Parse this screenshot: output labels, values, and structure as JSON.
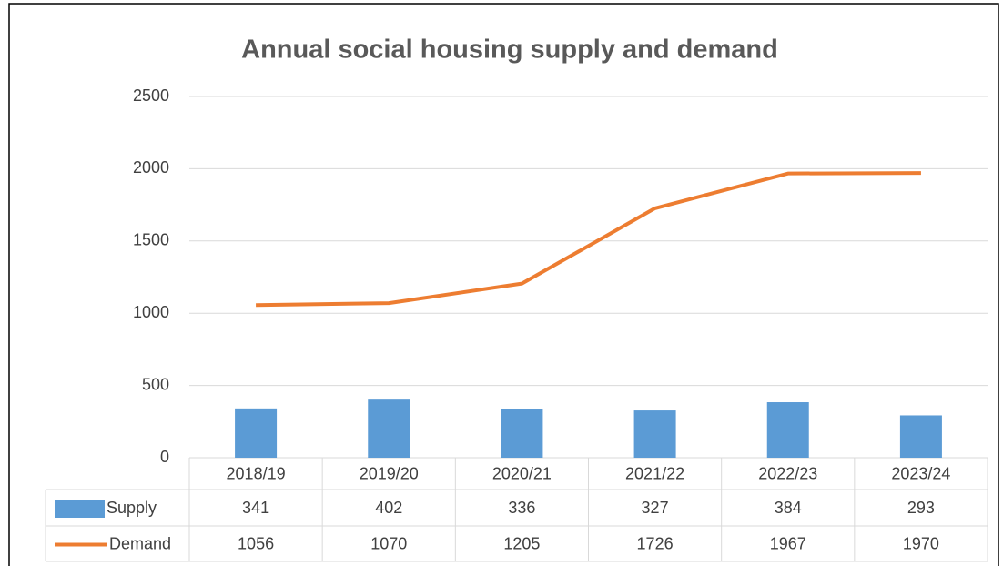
{
  "chart_data": {
    "type": "combo",
    "title": "Annual social housing supply and demand",
    "categories": [
      "2018/19",
      "2019/20",
      "2020/21",
      "2021/22",
      "2022/23",
      "2023/24"
    ],
    "series": [
      {
        "name": "Supply",
        "type": "bar",
        "color": "#5b9bd5",
        "values": [
          341,
          402,
          336,
          327,
          384,
          293
        ]
      },
      {
        "name": "Demand",
        "type": "line",
        "color": "#ed7d31",
        "values": [
          1056,
          1070,
          1205,
          1726,
          1967,
          1970
        ]
      }
    ],
    "ylim": [
      0,
      2500
    ],
    "yticks": [
      0,
      500,
      1000,
      1500,
      2000,
      2500
    ],
    "grid": true,
    "data_table": true
  }
}
